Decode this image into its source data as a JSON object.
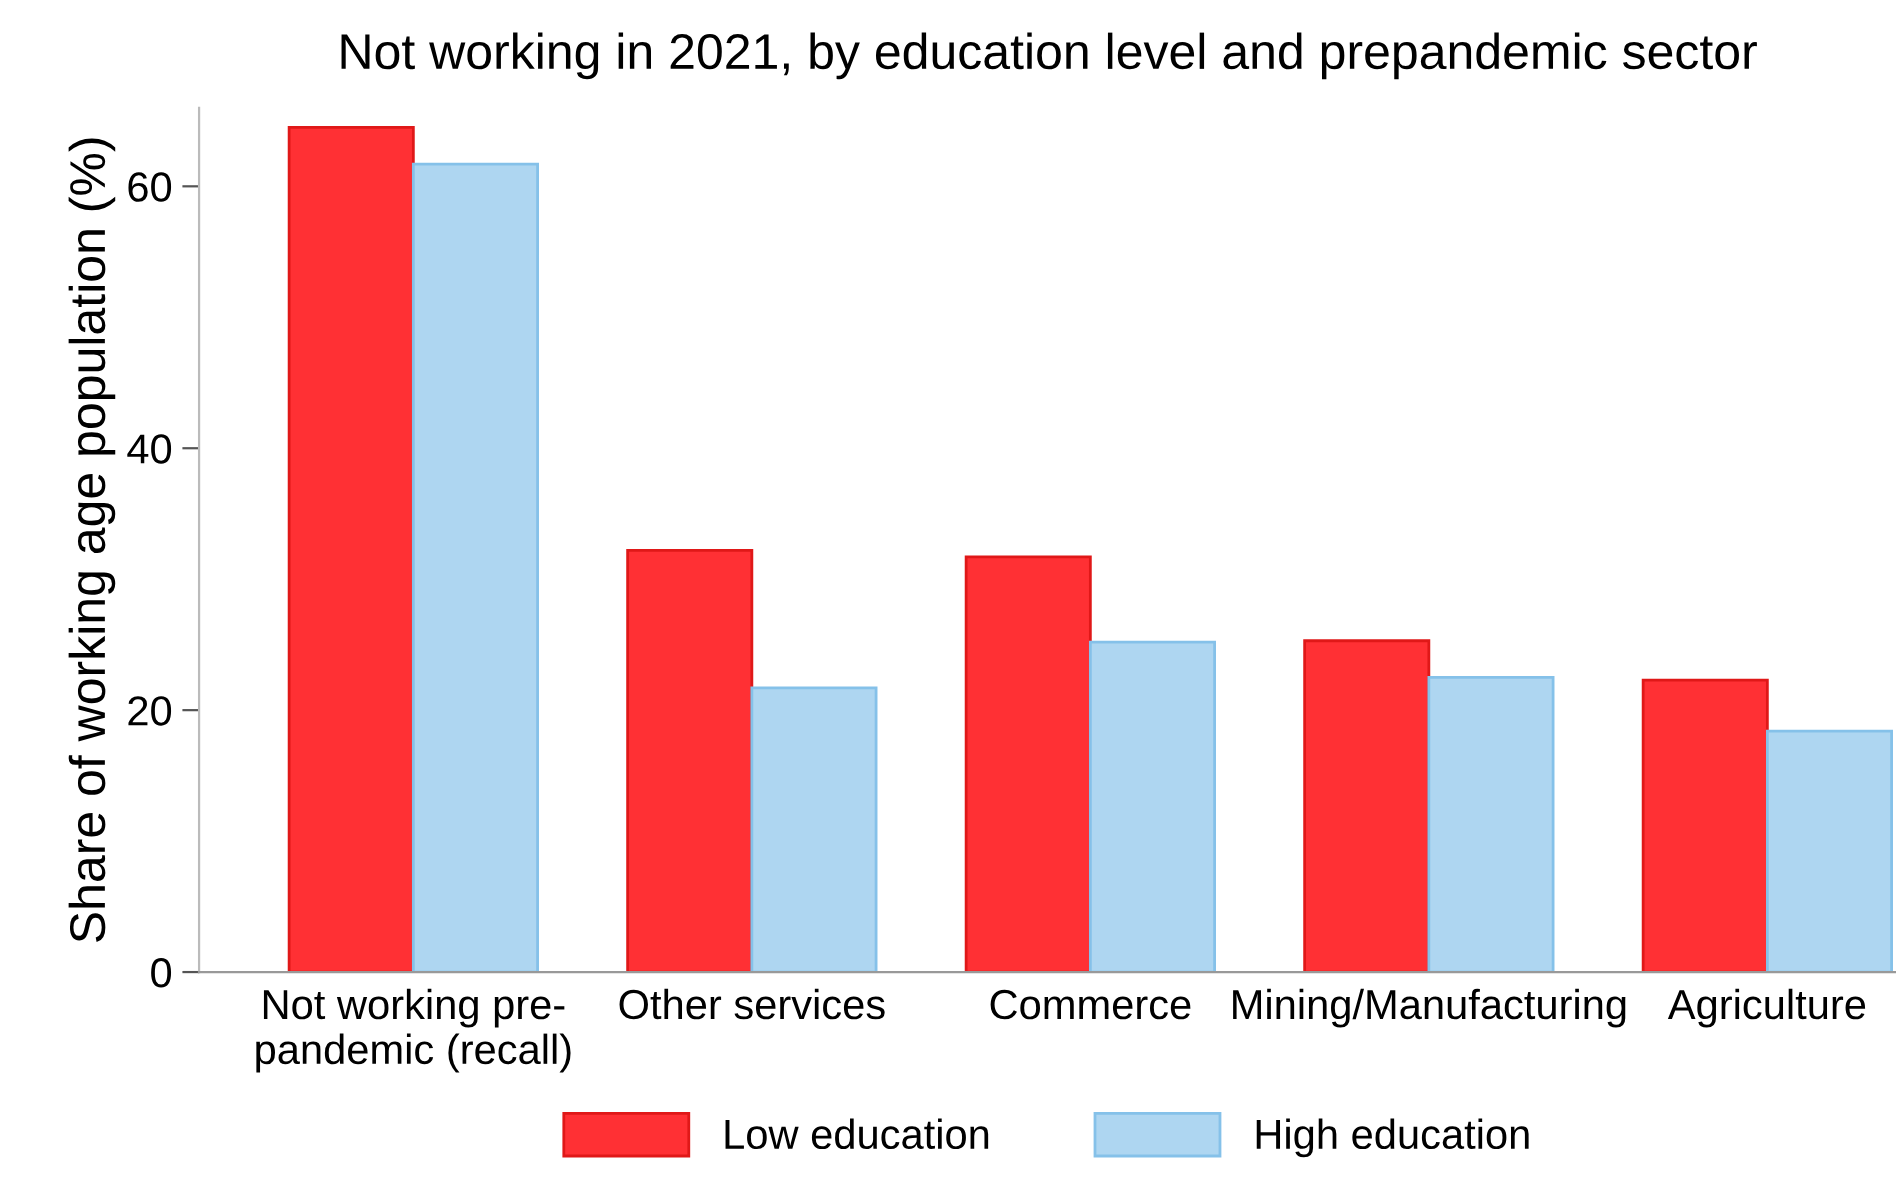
{
  "chart_data": {
    "type": "bar",
    "title": "Not working in 2021, by education level and prepandemic sector",
    "ylabel": "Share of working age population (%)",
    "categories": [
      "Not working pre-\npandemic (recall)",
      "Other services",
      "Commerce",
      "Mining/Manufacturing",
      "Agriculture"
    ],
    "series": [
      {
        "name": "Low education",
        "color": "#ff3034",
        "values": [
          64.5,
          32.2,
          31.7,
          25.3,
          22.3
        ]
      },
      {
        "name": "High education",
        "color": "#aed6f1",
        "values": [
          61.7,
          21.7,
          25.2,
          22.5,
          18.4
        ]
      }
    ],
    "ylim": [
      0,
      66
    ],
    "yticks": [
      0,
      20,
      40,
      60
    ],
    "grid": false,
    "legend": "bottom"
  }
}
